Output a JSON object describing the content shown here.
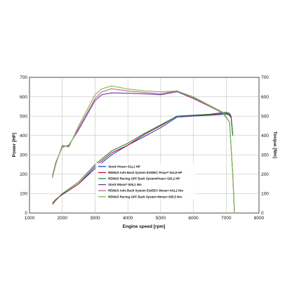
{
  "chart_data": {
    "type": "line",
    "title": "",
    "xlabel": "Engine speed [rpm]",
    "ylabel_left": "Power [HP]",
    "ylabel_right": "Torque [Nm]",
    "xlim": [
      1000,
      8000
    ],
    "ylim_left": [
      0,
      700
    ],
    "ylim_right": [
      0,
      700
    ],
    "x_ticks": [
      1000,
      2000,
      3000,
      4000,
      5000,
      6000,
      7000,
      8000
    ],
    "y_ticks": [
      0,
      100,
      200,
      300,
      400,
      500,
      600,
      700
    ],
    "grid": true,
    "legend_position": "bottom-center",
    "series": [
      {
        "name": "Stock Pmax= 511,2 HP",
        "quantity": "power",
        "color": "#2340c8",
        "x": [
          2000,
          2500,
          3000,
          3500,
          4000,
          4500,
          5000,
          5500,
          6000,
          6500,
          6800,
          7000,
          7100,
          7150,
          7200
        ],
        "y": [
          95,
          150,
          230,
          300,
          350,
          395,
          440,
          495,
          500,
          505,
          508,
          511,
          505,
          490,
          400
        ]
      },
      {
        "name": "REMUS Axle Back System EG/EEC Pmax= 514,9 HP",
        "quantity": "power",
        "color": "#c8102e",
        "x": [
          1700,
          1800,
          2000,
          2500,
          3000,
          3500,
          4000,
          4500,
          5000,
          5500,
          6000,
          6500,
          6800,
          7000,
          7100,
          7150,
          7200
        ],
        "y": [
          50,
          70,
          95,
          150,
          240,
          310,
          350,
          405,
          450,
          500,
          502,
          508,
          512,
          514.9,
          510,
          495,
          400
        ]
      },
      {
        "name": "REMUS Racing GPF Back SystemPmax= 520,2 HP",
        "quantity": "power",
        "color": "#1f8a3a",
        "x": [
          1700,
          1800,
          2000,
          2500,
          3000,
          3500,
          4000,
          4500,
          5000,
          5500,
          6000,
          6500,
          6800,
          7000,
          7100,
          7150,
          7200
        ],
        "y": [
          45,
          65,
          100,
          160,
          250,
          320,
          360,
          410,
          455,
          500,
          505,
          510,
          516,
          520.2,
          515,
          500,
          400
        ]
      },
      {
        "name": "Stock Mmax= 626,1 Nm",
        "quantity": "torque",
        "color": "#6a3fa8",
        "x": [
          1700,
          1800,
          2000,
          2200,
          2500,
          3000,
          3200,
          3500,
          4000,
          4500,
          5000,
          5500,
          6000,
          6500,
          6900,
          7100,
          7200,
          7250
        ],
        "y": [
          190,
          260,
          340,
          350,
          430,
          580,
          610,
          620,
          618,
          615,
          610,
          626,
          590,
          550,
          515,
          470,
          200,
          0
        ]
      },
      {
        "name": "REMUS Axle Back System EG/EEC Mmax= 641,2 Nm",
        "quantity": "torque",
        "color": "#cf5f86",
        "x": [
          1700,
          1800,
          2000,
          2200,
          2500,
          3000,
          3200,
          3500,
          4000,
          4500,
          5000,
          5500,
          6000,
          6500,
          6900,
          7100,
          7200,
          7250
        ],
        "y": [
          185,
          255,
          345,
          345,
          440,
          590,
          625,
          641,
          630,
          622,
          615,
          630,
          595,
          552,
          515,
          470,
          200,
          0
        ]
      },
      {
        "name": "REMUS Racing GPF Back System Mmax= 655,5 Nm",
        "quantity": "torque",
        "color": "#6fbf4a",
        "x": [
          1700,
          1800,
          2000,
          2200,
          2500,
          3000,
          3200,
          3500,
          4000,
          4500,
          5000,
          5500,
          6000,
          6500,
          6900,
          7100,
          7200,
          7250
        ],
        "y": [
          180,
          250,
          350,
          340,
          450,
          610,
          640,
          655.5,
          640,
          630,
          625,
          630,
          600,
          555,
          520,
          470,
          200,
          0
        ]
      }
    ]
  }
}
